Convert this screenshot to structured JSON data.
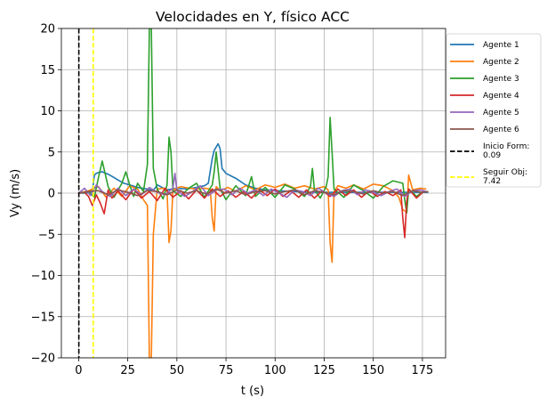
{
  "chart_data": {
    "type": "line",
    "title": "Velocidades en Y, físico ACC",
    "xlabel": "t (s)",
    "ylabel": "Vy (m/s)",
    "xlim": [
      -8.8,
      186.8
    ],
    "ylim": [
      -20,
      20
    ],
    "xticks": [
      0,
      25,
      50,
      75,
      100,
      125,
      150,
      175
    ],
    "yticks": [
      -20,
      -15,
      -10,
      -5,
      0,
      5,
      10,
      15,
      20
    ],
    "xtick_labels": [
      "0",
      "25",
      "50",
      "75",
      "100",
      "125",
      "150",
      "175"
    ],
    "ytick_labels": [
      "−20",
      "−15",
      "−10",
      "−5",
      "0",
      "5",
      "10",
      "15",
      "20"
    ],
    "grid": true,
    "legend_position": "outside-right-top",
    "series": [
      {
        "name": "Agente 1",
        "color": "#1f77b4",
        "x": [
          0,
          4,
          7,
          8,
          9,
          10,
          12,
          15,
          18,
          20,
          23,
          26,
          30,
          35,
          38,
          40,
          45,
          50,
          55,
          60,
          64,
          66,
          68,
          69,
          70,
          71,
          72,
          73,
          75,
          80,
          85,
          90,
          95,
          100,
          110,
          120,
          130,
          140,
          150,
          160,
          170,
          178
        ],
        "y": [
          0,
          0,
          0.2,
          2.2,
          2.4,
          2.5,
          2.6,
          2.3,
          1.9,
          1.6,
          1.2,
          1.0,
          0.7,
          0.5,
          0.3,
          1.0,
          0.4,
          0.6,
          0.5,
          0.7,
          0.9,
          1.2,
          4.2,
          5.2,
          5.6,
          6.0,
          5.4,
          3.0,
          2.4,
          1.8,
          1.0,
          0.6,
          0.4,
          0.3,
          0.2,
          0.1,
          0.1,
          0.1,
          0.1,
          0.1,
          0.1,
          0.1
        ]
      },
      {
        "name": "Agente 2",
        "color": "#ff7f0e",
        "x": [
          0,
          5,
          10,
          14,
          18,
          22,
          26,
          30,
          33,
          35,
          36,
          37,
          38,
          40,
          43,
          45,
          46,
          47,
          48,
          52,
          56,
          60,
          64,
          67,
          68,
          69,
          70,
          72,
          76,
          80,
          85,
          90,
          95,
          100,
          105,
          110,
          115,
          120,
          125,
          127,
          128,
          129,
          130,
          132,
          136,
          140,
          145,
          150,
          155,
          160,
          163,
          165,
          167,
          168,
          170,
          174,
          177
        ],
        "y": [
          0,
          0.3,
          0.8,
          -0.5,
          0.6,
          -0.4,
          0.9,
          0.5,
          -0.8,
          -1.5,
          -20,
          -20,
          -5,
          0.5,
          0.6,
          0.2,
          -6.0,
          -4.5,
          0.4,
          0.8,
          0.6,
          0.5,
          0.6,
          0.5,
          -3.0,
          -4.6,
          0.8,
          0.3,
          0.7,
          0.2,
          0.9,
          0.4,
          1.0,
          0.7,
          1.1,
          0.6,
          0.9,
          0.5,
          0.8,
          0.4,
          -6.0,
          -8.4,
          0.2,
          0.9,
          0.6,
          1.0,
          0.5,
          1.1,
          0.9,
          0.3,
          -0.5,
          -2.0,
          -2.3,
          2.2,
          0.4,
          0.6,
          0.5
        ]
      },
      {
        "name": "Agente 3",
        "color": "#2ca02c",
        "x": [
          0,
          5,
          8,
          10,
          12,
          15,
          18,
          22,
          24,
          26,
          28,
          30,
          33,
          35,
          36,
          37,
          38,
          40,
          43,
          45,
          46,
          47,
          48,
          52,
          56,
          60,
          64,
          68,
          69,
          70,
          72,
          75,
          80,
          85,
          88,
          90,
          95,
          100,
          105,
          110,
          115,
          118,
          119,
          120,
          123,
          126,
          127,
          128,
          129,
          130,
          135,
          140,
          145,
          150,
          155,
          160,
          165,
          166,
          167,
          168,
          172,
          176
        ],
        "y": [
          0,
          0.2,
          -0.5,
          1.8,
          3.9,
          0.8,
          -0.5,
          1.2,
          2.6,
          1.0,
          -0.4,
          1.2,
          0.2,
          3.5,
          20,
          20,
          3,
          0.5,
          -0.7,
          1.0,
          6.8,
          5.0,
          0.3,
          -0.4,
          0.6,
          1.2,
          -0.5,
          1.0,
          2.6,
          5.0,
          0.6,
          -0.8,
          0.9,
          -0.3,
          2.0,
          -0.4,
          0.7,
          -0.5,
          1.0,
          0.5,
          -0.4,
          0.8,
          3.0,
          0.4,
          -0.6,
          0.8,
          2.0,
          9.2,
          5.0,
          0.5,
          -0.5,
          1.0,
          0.3,
          -0.6,
          0.8,
          1.5,
          1.2,
          -0.8,
          -2.4,
          0.5,
          -0.4,
          0.3
        ]
      },
      {
        "name": "Agente 4",
        "color": "#d62728",
        "x": [
          0,
          3,
          5,
          7,
          9,
          11,
          13,
          15,
          17,
          20,
          24,
          28,
          32,
          36,
          40,
          44,
          48,
          52,
          56,
          60,
          64,
          68,
          72,
          76,
          80,
          84,
          88,
          92,
          96,
          100,
          104,
          108,
          112,
          116,
          120,
          124,
          128,
          132,
          136,
          140,
          144,
          148,
          152,
          156,
          160,
          164,
          165,
          166,
          167,
          168,
          172,
          176
        ],
        "y": [
          0,
          0.1,
          -0.4,
          -1.5,
          -0.2,
          -1.2,
          -2.5,
          0.4,
          -0.6,
          0.3,
          -0.8,
          0.5,
          -0.6,
          0.2,
          -0.9,
          0.6,
          -0.5,
          0.3,
          -0.7,
          0.4,
          -0.6,
          0.5,
          -0.4,
          0.3,
          -0.5,
          0.2,
          -0.6,
          0.4,
          -0.3,
          0.5,
          -0.4,
          0.3,
          -0.5,
          0.4,
          -0.6,
          0.3,
          -0.4,
          0.5,
          -0.3,
          0.4,
          -0.5,
          0.3,
          -0.4,
          0.2,
          -0.3,
          0.4,
          -3.0,
          -5.4,
          -1.0,
          0.5,
          -0.6,
          0.3
        ]
      },
      {
        "name": "Agente 5",
        "color": "#9467bd",
        "x": [
          0,
          3,
          6,
          9,
          12,
          16,
          20,
          24,
          28,
          32,
          36,
          40,
          44,
          48,
          49,
          50,
          54,
          58,
          62,
          66,
          70,
          74,
          78,
          82,
          86,
          90,
          94,
          98,
          102,
          106,
          110,
          114,
          118,
          122,
          126,
          130,
          134,
          138,
          142,
          146,
          150,
          154,
          158,
          162,
          166,
          170,
          174,
          177
        ],
        "y": [
          0,
          0.6,
          -0.3,
          1.0,
          0.2,
          -0.4,
          0.6,
          -0.3,
          0.5,
          -0.2,
          0.7,
          0.1,
          -0.2,
          0.6,
          2.4,
          0.3,
          -0.4,
          0.2,
          0.9,
          -0.3,
          0.4,
          0.5,
          -0.2,
          0.6,
          0.0,
          0.4,
          -0.3,
          0.5,
          0.0,
          -0.5,
          0.4,
          0.2,
          -0.3,
          0.6,
          0.0,
          -0.4,
          0.3,
          0.5,
          -0.2,
          0.4,
          0.1,
          -0.3,
          0.2,
          0.5,
          -0.4,
          0.3,
          0.4,
          0.2
        ]
      },
      {
        "name": "Agente 6",
        "color": "#8c564b",
        "x": [
          0,
          5,
          10,
          15,
          20,
          25,
          30,
          35,
          40,
          45,
          50,
          55,
          60,
          65,
          70,
          75,
          80,
          85,
          90,
          95,
          100,
          105,
          110,
          115,
          120,
          125,
          130,
          135,
          140,
          145,
          150,
          155,
          160,
          165,
          170,
          175,
          178
        ],
        "y": [
          0,
          0.2,
          0.3,
          -0.2,
          0.4,
          0.1,
          -0.3,
          0.3,
          0.2,
          -0.2,
          0.4,
          0.0,
          0.3,
          -0.1,
          0.5,
          0.0,
          0.3,
          -0.2,
          0.2,
          0.3,
          -0.1,
          0.2,
          0.4,
          -0.2,
          0.3,
          0.1,
          -0.2,
          0.3,
          0.2,
          -0.1,
          0.3,
          0.0,
          0.2,
          -0.3,
          0.3,
          0.1,
          0.2
        ]
      }
    ],
    "vlines": [
      {
        "name": "Inicio Form:\n0.09",
        "x": 0.09,
        "color": "#000000",
        "style": "dashed"
      },
      {
        "name": "Seguir Obj:\n7.42",
        "x": 7.42,
        "color": "#ffff00",
        "style": "dashed"
      }
    ]
  }
}
